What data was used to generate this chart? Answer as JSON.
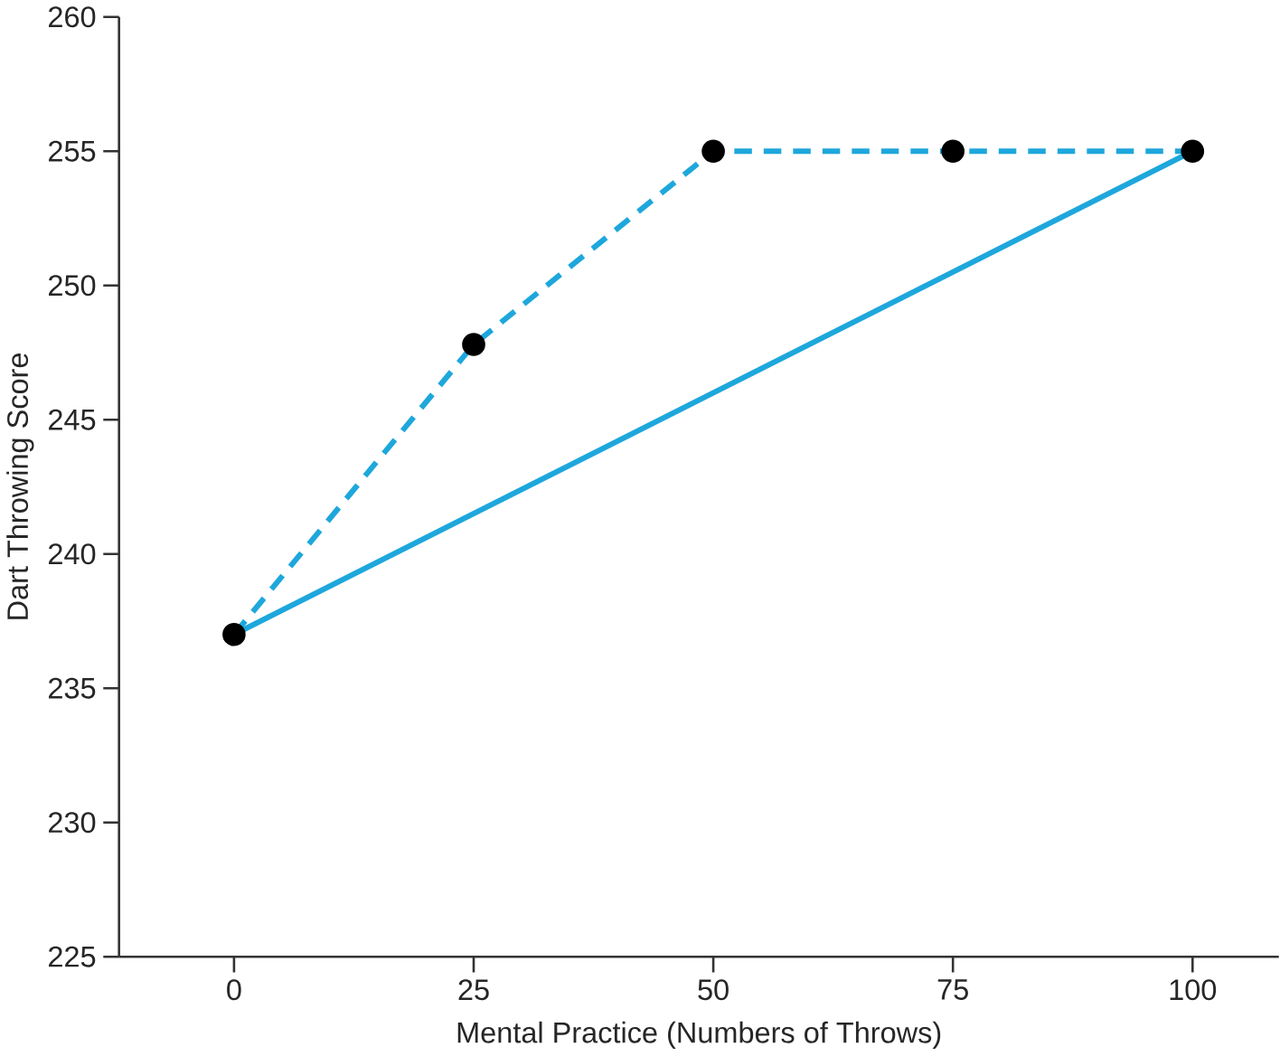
{
  "chart_data": {
    "type": "line",
    "xlabel": "Mental Practice (Numbers of Throws)",
    "ylabel": "Dart Throwing Score",
    "x": [
      0,
      25,
      50,
      75,
      100
    ],
    "series": [
      {
        "color": "#1ea7dc",
        "values": [
          237,
          247.8,
          255,
          255,
          255
        ],
        "marker": "circle",
        "line_style": "dashed"
      },
      {
        "color": "#1ea7dc",
        "x": [
          0,
          100
        ],
        "values": [
          237,
          255
        ],
        "marker": "none",
        "line_style": "solid"
      }
    ],
    "xlim": [
      -12,
      109
    ],
    "ylim": [
      225,
      260
    ],
    "xticks": [
      0,
      25,
      50,
      75,
      100
    ],
    "yticks": [
      225,
      230,
      235,
      240,
      245,
      250,
      255,
      260
    ],
    "grid": false
  }
}
